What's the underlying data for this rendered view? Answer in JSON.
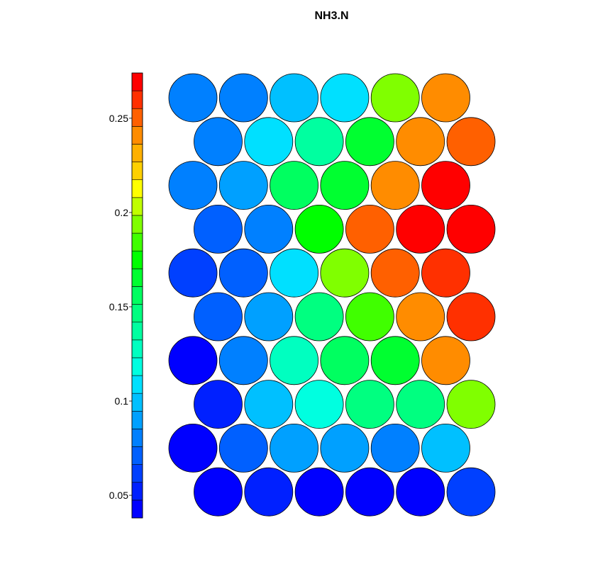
{
  "chart_data": {
    "type": "heatmap",
    "subtype": "hexagonal-som-map",
    "title": "NH3.N",
    "colorbar": {
      "min": 0.038,
      "max": 0.274,
      "ticks": [
        0.05,
        0.1,
        0.15,
        0.2,
        0.25
      ],
      "tick_labels": [
        "0.05",
        "0.1",
        "0.15",
        "0.2",
        "0.25"
      ],
      "colors": [
        "#0000ff",
        "#0020ff",
        "#0040ff",
        "#0060ff",
        "#0080ff",
        "#00a0ff",
        "#00c0ff",
        "#00e0ff",
        "#00ffe0",
        "#00ffc0",
        "#00ffa0",
        "#00ff80",
        "#00ff60",
        "#00ff30",
        "#00ff00",
        "#40ff00",
        "#80ff00",
        "#c0ff00",
        "#ffff00",
        "#ffd000",
        "#ffb000",
        "#ff8c00",
        "#ff6000",
        "#ff3000",
        "#ff0000"
      ],
      "placement": "left"
    },
    "grid": {
      "rows": 10,
      "cols": 6
    },
    "rows": [
      [
        0.08,
        0.083,
        0.101,
        0.11,
        0.19,
        0.238
      ],
      [
        0.08,
        0.11,
        0.14,
        0.165,
        0.238,
        0.25
      ],
      [
        0.08,
        0.094,
        0.155,
        0.17,
        0.238,
        0.27
      ],
      [
        0.068,
        0.08,
        0.175,
        0.25,
        0.27,
        0.272
      ],
      [
        0.066,
        0.068,
        0.112,
        0.19,
        0.25,
        0.26
      ],
      [
        0.068,
        0.092,
        0.148,
        0.18,
        0.238,
        0.26
      ],
      [
        0.04,
        0.08,
        0.13,
        0.155,
        0.17,
        0.238
      ],
      [
        0.055,
        0.1,
        0.12,
        0.15,
        0.148,
        0.19
      ],
      [
        0.045,
        0.07,
        0.09,
        0.092,
        0.08,
        0.1
      ],
      [
        0.042,
        0.055,
        0.044,
        0.044,
        0.042,
        0.058
      ]
    ]
  }
}
